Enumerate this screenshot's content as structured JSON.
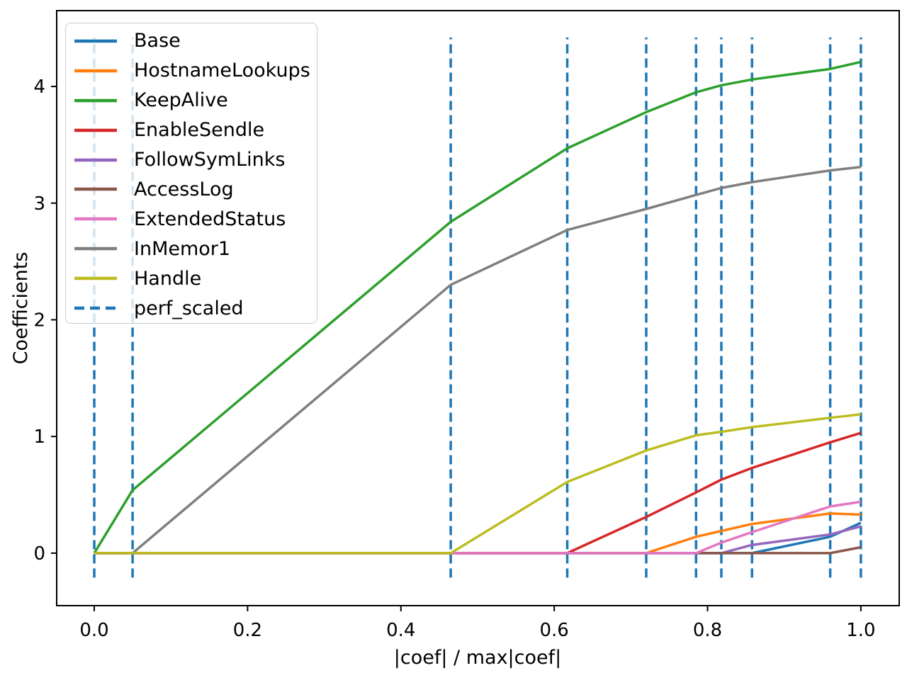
{
  "figure": {
    "background": "#ffffff"
  },
  "chart_data": {
    "type": "line",
    "title": "",
    "xlabel": "|coef| / max|coef|",
    "ylabel": "Coefficients",
    "xlim": [
      -0.049,
      1.05
    ],
    "ylim": [
      -0.45,
      4.65
    ],
    "grid": false,
    "legend_position": "upper left",
    "x_ticks": [
      0.0,
      0.2,
      0.4,
      0.6,
      0.8,
      1.0
    ],
    "x_tick_labels": [
      "0.0",
      "0.2",
      "0.4",
      "0.6",
      "0.8",
      "1.0"
    ],
    "y_ticks": [
      0,
      1,
      2,
      3,
      4
    ],
    "y_tick_labels": [
      "0",
      "1",
      "2",
      "3",
      "4"
    ],
    "x": [
      0.0,
      0.05,
      0.465,
      0.617,
      0.72,
      0.785,
      0.818,
      0.858,
      0.96,
      1.0
    ],
    "series": [
      {
        "name": "Base",
        "color": "#1f77b4",
        "values": [
          0,
          0,
          0,
          0,
          0,
          0,
          0,
          0,
          0.14,
          0.26
        ]
      },
      {
        "name": "HostnameLookups",
        "color": "#ff7f0e",
        "values": [
          0,
          0,
          0,
          0,
          0,
          0.14,
          0.19,
          0.25,
          0.34,
          0.33
        ]
      },
      {
        "name": "KeepAlive",
        "color": "#2ca02c",
        "values": [
          0,
          0.54,
          2.84,
          3.47,
          3.78,
          3.95,
          4.01,
          4.06,
          4.15,
          4.21
        ]
      },
      {
        "name": "EnableSendle",
        "color": "#d62728",
        "values": [
          0,
          0,
          0,
          0,
          0.31,
          0.52,
          0.63,
          0.73,
          0.95,
          1.03
        ]
      },
      {
        "name": "FollowSymLinks",
        "color": "#9467bd",
        "values": [
          0,
          0,
          0,
          0,
          0,
          0,
          0,
          0.07,
          0.16,
          0.23
        ]
      },
      {
        "name": "AccessLog",
        "color": "#8c564b",
        "values": [
          0,
          0,
          0,
          0,
          0,
          0,
          0,
          0,
          0,
          0.05
        ]
      },
      {
        "name": "ExtendedStatus",
        "color": "#e377c2",
        "values": [
          0,
          0,
          0,
          0,
          0,
          0,
          0.09,
          0.18,
          0.4,
          0.44
        ]
      },
      {
        "name": "InMemor1",
        "color": "#7f7f7f",
        "values": [
          0,
          0,
          2.3,
          2.77,
          2.95,
          3.07,
          3.13,
          3.18,
          3.28,
          3.31
        ]
      },
      {
        "name": "Handle",
        "color": "#bcbd22",
        "values": [
          0,
          0,
          0,
          0.61,
          0.88,
          1.01,
          1.04,
          1.08,
          1.16,
          1.19
        ]
      }
    ],
    "vlines": {
      "name": "perf_scaled",
      "color": "#1f77b4",
      "style": "dashed",
      "x": [
        0.0,
        0.05,
        0.465,
        0.617,
        0.72,
        0.785,
        0.818,
        0.858,
        0.96,
        1.0
      ],
      "ymin": -0.21,
      "ymax": 4.42
    }
  }
}
